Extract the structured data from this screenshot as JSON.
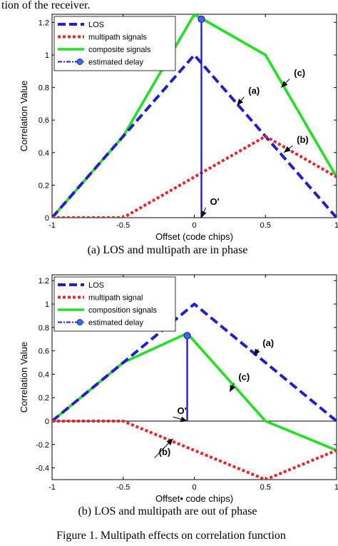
{
  "header_text": "tion of the receiver.",
  "figure_caption": "Figure 1.    Multipath effects on correlation function",
  "chart_data": [
    {
      "type": "line",
      "caption": "(a) LOS and multipath are in phase",
      "xlabel": "Offset (code chips)",
      "ylabel": "Correlation Value",
      "xlim": [
        -1,
        1
      ],
      "ylim": [
        0,
        1.25
      ],
      "xticks": [
        -1,
        -0.5,
        0,
        0.5,
        1
      ],
      "xtick_labels": [
        "-1",
        "-0.5",
        "0",
        "0.5",
        "1"
      ],
      "yticks": [
        0,
        0.2,
        0.4,
        0.6,
        0.8,
        1,
        1.2
      ],
      "ytick_labels": [
        "0",
        "0.2",
        "0.4",
        "0.6",
        "0.8",
        "1",
        "1.2"
      ],
      "grid": false,
      "legend_position": "top-left",
      "series": [
        {
          "name": "LOS",
          "color": "#1f1fd1",
          "style": "dashed",
          "x": [
            -1,
            0,
            1
          ],
          "y": [
            0,
            1,
            0
          ]
        },
        {
          "name": "multipath signals",
          "color": "#e8262c",
          "style": "dotted",
          "x": [
            -1,
            -0.5,
            0.5,
            1
          ],
          "y": [
            0,
            0,
            0.5,
            0.25
          ]
        },
        {
          "name": "composite signals",
          "color": "#22e022",
          "style": "solid",
          "x": [
            -1,
            -0.5,
            0,
            0.5,
            1
          ],
          "y": [
            0,
            0.5,
            1.25,
            1.0,
            0.25
          ]
        },
        {
          "name": "estimated delay",
          "color": "#1f1fd1",
          "style": "stem",
          "x": [
            0.05,
            0.05
          ],
          "y": [
            0,
            1.22
          ]
        }
      ],
      "annotations": [
        {
          "text": "(a)",
          "x": 0.38,
          "y": 0.76,
          "arrow_to": [
            0.3,
            0.69
          ]
        },
        {
          "text": "(b)",
          "x": 0.72,
          "y": 0.46,
          "arrow_to": [
            0.63,
            0.4
          ]
        },
        {
          "text": "(c)",
          "x": 0.7,
          "y": 0.87,
          "arrow_to": [
            0.61,
            0.8
          ]
        },
        {
          "text": "O'",
          "x": 0.11,
          "y": 0.08,
          "arrow_to": [
            0.05,
            0.0
          ]
        }
      ]
    },
    {
      "type": "line",
      "caption": "(b) LOS and multipath are out of phase",
      "xlabel": "Offset•  code chips)",
      "ylabel": "Correlation Value",
      "xlim": [
        -1,
        1
      ],
      "ylim": [
        -0.5,
        1.25
      ],
      "xticks": [
        -1,
        -0.5,
        0,
        0.5,
        1
      ],
      "xtick_labels": [
        "-1",
        "-0.5",
        "0",
        "0.5",
        "1"
      ],
      "yticks": [
        -0.4,
        -0.2,
        0,
        0.2,
        0.4,
        0.6,
        0.8,
        1,
        1.2
      ],
      "ytick_labels": [
        "-0.4",
        "-0.2",
        "0",
        "0.2",
        "0.4",
        "0.6",
        "0.8",
        "1",
        "1.2"
      ],
      "grid": false,
      "legend_position": "top-left",
      "series": [
        {
          "name": "LOS",
          "color": "#1f1fd1",
          "style": "dashed",
          "x": [
            -1,
            0,
            1
          ],
          "y": [
            0,
            1,
            0
          ]
        },
        {
          "name": "multipath signal",
          "color": "#e8262c",
          "style": "dotted",
          "x": [
            -1,
            -0.5,
            0.5,
            1
          ],
          "y": [
            0,
            0,
            -0.5,
            -0.25
          ]
        },
        {
          "name": "composition signals",
          "color": "#22e022",
          "style": "solid",
          "x": [
            -1,
            -0.5,
            -0.05,
            0.5,
            1
          ],
          "y": [
            0,
            0.5,
            0.75,
            0,
            -0.25
          ]
        },
        {
          "name": "estimated delay",
          "color": "#1f1fd1",
          "style": "stem",
          "x": [
            -0.05,
            -0.05
          ],
          "y": [
            0,
            0.73
          ]
        }
      ],
      "annotations": [
        {
          "text": "(a)",
          "x": 0.48,
          "y": 0.64,
          "arrow_to": [
            0.42,
            0.56
          ]
        },
        {
          "text": "(c)",
          "x": 0.31,
          "y": 0.35,
          "arrow_to": [
            0.25,
            0.25
          ]
        },
        {
          "text": "(b)",
          "x": -0.25,
          "y": -0.29,
          "arrow_to": [
            -0.15,
            -0.15
          ]
        },
        {
          "text": "O'",
          "x": -0.12,
          "y": 0.06,
          "arrow_to": [
            -0.05,
            0.0
          ]
        }
      ]
    }
  ]
}
